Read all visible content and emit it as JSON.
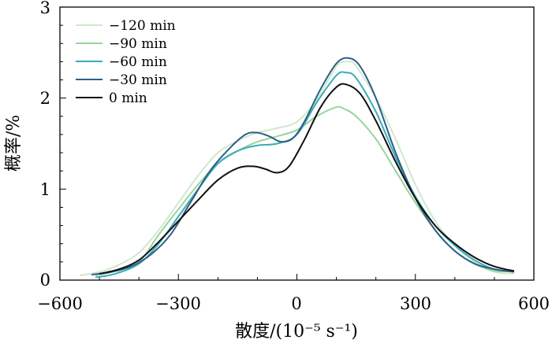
{
  "chart_data": {
    "type": "line",
    "title": "",
    "xlabel": "散度/(10⁻⁵ s⁻¹)",
    "ylabel": "概率/%",
    "xlim": [
      -600,
      600
    ],
    "ylim": [
      0,
      3
    ],
    "xticks": [
      -600,
      -300,
      0,
      300,
      600
    ],
    "xtick_labels": [
      "−600",
      "−300",
      "0",
      "300",
      "600"
    ],
    "yticks": [
      0,
      1,
      2,
      3
    ],
    "ytick_labels": [
      "0",
      "1",
      "2",
      "3"
    ],
    "grid": false,
    "legend_position": "top-left",
    "series": [
      {
        "name": "−120 min",
        "color": "#cfe8cd",
        "points": [
          [
            -550,
            0.05
          ],
          [
            -500,
            0.09
          ],
          [
            -450,
            0.17
          ],
          [
            -400,
            0.3
          ],
          [
            -350,
            0.55
          ],
          [
            -300,
            0.85
          ],
          [
            -250,
            1.15
          ],
          [
            -200,
            1.4
          ],
          [
            -150,
            1.53
          ],
          [
            -100,
            1.62
          ],
          [
            -50,
            1.67
          ],
          [
            0,
            1.74
          ],
          [
            50,
            1.98
          ],
          [
            100,
            2.35
          ],
          [
            130,
            2.4
          ],
          [
            150,
            2.35
          ],
          [
            200,
            2.0
          ],
          [
            250,
            1.55
          ],
          [
            300,
            1.05
          ],
          [
            350,
            0.65
          ],
          [
            400,
            0.38
          ],
          [
            450,
            0.2
          ],
          [
            500,
            0.09
          ],
          [
            550,
            0.07
          ]
        ]
      },
      {
        "name": "−90 min",
        "color": "#99d49b",
        "points": [
          [
            -510,
            0.05
          ],
          [
            -460,
            0.1
          ],
          [
            -400,
            0.2
          ],
          [
            -350,
            0.5
          ],
          [
            -300,
            0.78
          ],
          [
            -250,
            1.05
          ],
          [
            -200,
            1.28
          ],
          [
            -150,
            1.42
          ],
          [
            -100,
            1.52
          ],
          [
            -50,
            1.58
          ],
          [
            0,
            1.65
          ],
          [
            50,
            1.8
          ],
          [
            100,
            1.9
          ],
          [
            120,
            1.88
          ],
          [
            150,
            1.8
          ],
          [
            200,
            1.55
          ],
          [
            250,
            1.2
          ],
          [
            300,
            0.85
          ],
          [
            350,
            0.55
          ],
          [
            400,
            0.32
          ],
          [
            450,
            0.18
          ],
          [
            500,
            0.1
          ],
          [
            550,
            0.1
          ]
        ]
      },
      {
        "name": "−60 min",
        "color": "#3aacb8",
        "points": [
          [
            -510,
            0.03
          ],
          [
            -460,
            0.07
          ],
          [
            -400,
            0.18
          ],
          [
            -350,
            0.4
          ],
          [
            -300,
            0.7
          ],
          [
            -250,
            1.0
          ],
          [
            -200,
            1.28
          ],
          [
            -150,
            1.42
          ],
          [
            -100,
            1.48
          ],
          [
            -50,
            1.5
          ],
          [
            0,
            1.6
          ],
          [
            50,
            1.95
          ],
          [
            100,
            2.25
          ],
          [
            125,
            2.28
          ],
          [
            150,
            2.22
          ],
          [
            200,
            1.85
          ],
          [
            250,
            1.35
          ],
          [
            300,
            0.92
          ],
          [
            350,
            0.6
          ],
          [
            400,
            0.38
          ],
          [
            450,
            0.22
          ],
          [
            500,
            0.12
          ],
          [
            550,
            0.1
          ]
        ]
      },
      {
        "name": "−30 min",
        "color": "#2d5e86",
        "points": [
          [
            -520,
            0.06
          ],
          [
            -470,
            0.09
          ],
          [
            -420,
            0.15
          ],
          [
            -370,
            0.28
          ],
          [
            -320,
            0.5
          ],
          [
            -270,
            0.85
          ],
          [
            -220,
            1.2
          ],
          [
            -170,
            1.45
          ],
          [
            -130,
            1.6
          ],
          [
            -100,
            1.62
          ],
          [
            -70,
            1.58
          ],
          [
            -40,
            1.52
          ],
          [
            -10,
            1.56
          ],
          [
            20,
            1.75
          ],
          [
            60,
            2.1
          ],
          [
            100,
            2.38
          ],
          [
            130,
            2.44
          ],
          [
            160,
            2.35
          ],
          [
            200,
            2.0
          ],
          [
            250,
            1.4
          ],
          [
            300,
            0.9
          ],
          [
            350,
            0.55
          ],
          [
            400,
            0.32
          ],
          [
            450,
            0.18
          ],
          [
            500,
            0.12
          ],
          [
            550,
            0.09
          ]
        ]
      },
      {
        "name": "0 min",
        "color": "#111111",
        "points": [
          [
            -500,
            0.07
          ],
          [
            -450,
            0.12
          ],
          [
            -400,
            0.22
          ],
          [
            -350,
            0.42
          ],
          [
            -300,
            0.65
          ],
          [
            -250,
            0.88
          ],
          [
            -200,
            1.1
          ],
          [
            -150,
            1.23
          ],
          [
            -110,
            1.25
          ],
          [
            -80,
            1.22
          ],
          [
            -50,
            1.18
          ],
          [
            -20,
            1.25
          ],
          [
            20,
            1.55
          ],
          [
            60,
            1.9
          ],
          [
            100,
            2.12
          ],
          [
            125,
            2.15
          ],
          [
            160,
            2.05
          ],
          [
            200,
            1.75
          ],
          [
            250,
            1.3
          ],
          [
            300,
            0.9
          ],
          [
            350,
            0.6
          ],
          [
            400,
            0.4
          ],
          [
            450,
            0.25
          ],
          [
            500,
            0.15
          ],
          [
            550,
            0.1
          ]
        ]
      }
    ]
  }
}
